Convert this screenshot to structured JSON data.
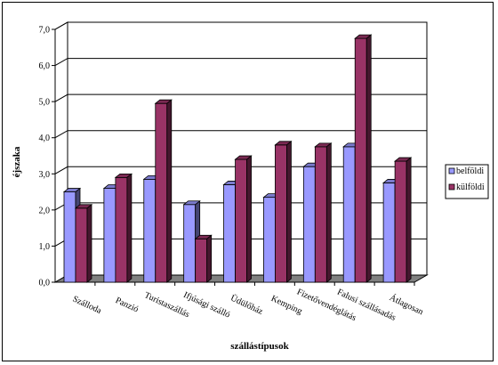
{
  "chart_data": {
    "type": "bar",
    "style": "3d-clustered-column",
    "title": "",
    "xlabel": "szállástípusok",
    "ylabel": "éjszaka",
    "ylim": [
      0,
      7
    ],
    "yticks": [
      "0,0",
      "1,0",
      "2,0",
      "3,0",
      "4,0",
      "5,0",
      "6,0",
      "7,0"
    ],
    "grid": true,
    "legend_position": "right",
    "categories": [
      "Szálloda",
      "Panzió",
      "Turistaszállás",
      "Ifjúsági szálló",
      "Üdülőház",
      "Kemping",
      "Fizetővendéglátás",
      "Falusi szállásadás",
      "Átlagosan"
    ],
    "series": [
      {
        "name": "belföldi",
        "color": "#9999ff",
        "values": [
          2.5,
          2.6,
          2.85,
          2.15,
          2.7,
          2.35,
          3.2,
          3.75,
          2.75
        ]
      },
      {
        "name": "külföldi",
        "color": "#993366",
        "values": [
          2.05,
          2.9,
          4.95,
          1.2,
          3.4,
          3.8,
          3.75,
          6.75,
          3.35
        ]
      }
    ]
  }
}
